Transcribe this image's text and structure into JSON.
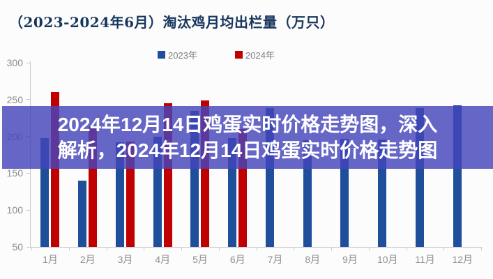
{
  "page": {
    "background": "#fcfcfc"
  },
  "chart": {
    "title_color": "#17365d",
    "axis_label_color": "#8e8e8e",
    "axis_line_color": "#c9c9c9"
  },
  "chart_data": {
    "type": "bar",
    "title": "（2023-2024年6月）淘汰鸡月均出栏量（万只）",
    "categories": [
      "1月",
      "2月",
      "3月",
      "4月",
      "5月",
      "6月",
      "7月",
      "8月",
      "9月",
      "10月",
      "11月",
      "12月"
    ],
    "series": [
      {
        "name": "2023年",
        "color": "#1f4e9b",
        "values": [
          198,
          140,
          192,
          200,
          235,
          198,
          238,
          195,
          197,
          196,
          238,
          242
        ]
      },
      {
        "name": "2024年",
        "color": "#c00000",
        "values": [
          260,
          213,
          193,
          245,
          249,
          210,
          null,
          null,
          null,
          null,
          null,
          null
        ]
      }
    ],
    "xlabel": "",
    "ylabel": "",
    "ylim": [
      50,
      300
    ],
    "y_ticks": [
      300,
      250,
      200,
      150,
      100,
      50
    ],
    "grid": false,
    "legend_position": "top-center"
  },
  "overlay": {
    "line1": "2024年12月14日鸡蛋实时价格走势图，深入",
    "line2": "解析，2024年12月14日鸡蛋实时价格走势图",
    "background": "rgba(68,68,187,0.82)",
    "text_color": "#ffffff"
  }
}
